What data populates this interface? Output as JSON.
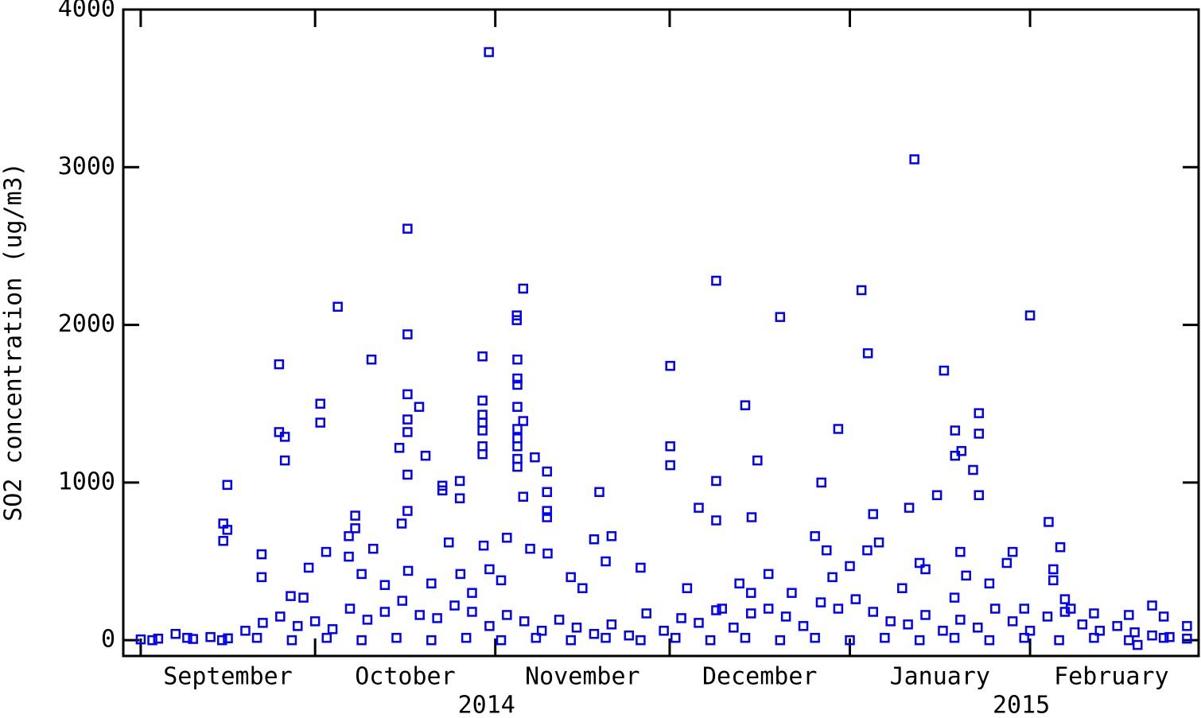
{
  "chart_data": {
    "type": "scatter",
    "ylabel": "SO2 concentration (ug/m3)",
    "color": "#0000ff",
    "marker": "square",
    "xlim": [
      -3,
      182
    ],
    "ylim": [
      -100,
      4000
    ],
    "yticks": [
      0,
      1000,
      2000,
      3000,
      4000
    ],
    "x_major_ticks": [
      0,
      30,
      61,
      91,
      122,
      153
    ],
    "x_labels": [
      {
        "value": 15,
        "label": "September"
      },
      {
        "value": 45.5,
        "label": "October"
      },
      {
        "value": 76,
        "label": "November"
      },
      {
        "value": 106.5,
        "label": "December"
      },
      {
        "value": 137.5,
        "label": "January"
      },
      {
        "value": 167,
        "label": "February"
      }
    ],
    "year_labels": [
      {
        "value": 59.5,
        "label": "2014"
      },
      {
        "value": 151.5,
        "label": "2015"
      }
    ],
    "x": [
      14.2,
      14.2,
      14.9,
      14.9,
      20.8,
      20.8,
      23.8,
      23.8,
      24.8,
      24.8,
      25.8,
      28.9,
      30.9,
      30.9,
      31.9,
      33.9,
      35.8,
      35.8,
      36.9,
      36.9,
      39.7,
      44.5,
      44.9,
      45.9,
      45.9,
      45.9,
      45.9,
      45.9,
      45.9,
      45.9,
      47.9,
      49,
      51.9,
      51.9,
      54.9,
      54.9,
      58.8,
      58.8,
      58.8,
      58.8,
      58.8,
      58.8,
      58.8,
      59.9,
      64.7,
      64.7,
      64.8,
      64.8,
      64.8,
      64.8,
      64.8,
      64.8,
      64.8,
      64.8,
      64.8,
      65.8,
      65.8,
      65.8,
      67.8,
      69.9,
      69.9,
      69.9,
      69.9,
      78.9,
      91.1,
      91.1,
      91.1,
      96,
      99,
      99,
      99,
      104,
      105.1,
      106.1,
      110,
      117.1,
      120,
      124,
      125.1,
      126,
      132.2,
      133.1,
      138.2,
      140.1,
      140.1,
      141.2,
      143.2,
      144.2,
      144.2,
      144.2,
      153,
      156.2,
      158.2,
      28,
      38,
      40,
      42,
      46,
      50,
      53,
      55,
      57,
      59,
      60,
      62,
      63,
      67,
      70,
      74,
      76,
      78,
      80,
      81,
      86,
      94,
      100,
      103,
      105,
      108,
      112,
      116,
      118,
      119,
      122,
      125,
      127,
      131,
      134,
      135,
      137,
      140,
      141,
      142,
      146,
      150,
      149,
      152,
      157,
      157,
      159,
      160,
      164,
      170,
      174,
      176,
      180,
      0,
      3,
      6,
      9,
      12,
      15,
      18,
      21,
      24,
      27,
      30,
      33,
      36,
      39,
      42,
      45,
      48,
      51,
      54,
      57,
      60,
      63,
      66,
      69,
      72,
      75,
      78,
      81,
      84,
      87,
      90,
      93,
      96,
      99,
      102,
      105,
      108,
      111,
      114,
      117,
      120,
      123,
      126,
      129,
      132,
      135,
      138,
      141,
      144,
      147,
      150,
      153,
      156,
      159,
      162,
      165,
      168,
      171,
      174,
      177,
      180,
      2,
      8,
      14,
      20,
      26,
      32,
      38,
      44,
      50,
      56,
      62,
      68,
      74,
      80,
      86,
      92,
      98,
      104,
      110,
      116,
      122,
      128,
      134,
      140,
      146,
      152,
      158,
      164,
      170,
      176,
      171.5
    ],
    "values": [
      740,
      630,
      985,
      700,
      545,
      400,
      1750,
      1320,
      1290,
      1140,
      280,
      460,
      1500,
      1380,
      560,
      2115,
      660,
      530,
      790,
      710,
      1780,
      1220,
      740,
      2610,
      1940,
      1560,
      1400,
      1320,
      1050,
      820,
      1480,
      1170,
      980,
      950,
      1010,
      900,
      1800,
      1520,
      1430,
      1380,
      1330,
      1230,
      1180,
      3730,
      2060,
      2030,
      1780,
      1660,
      1620,
      1480,
      1340,
      1280,
      1230,
      1150,
      1100,
      2230,
      1390,
      910,
      1160,
      1070,
      940,
      820,
      780,
      940,
      1740,
      1230,
      1110,
      840,
      2280,
      1010,
      760,
      1490,
      780,
      1140,
      2050,
      1000,
      1340,
      2220,
      1820,
      800,
      840,
      3050,
      1710,
      1330,
      1170,
      1200,
      1080,
      1440,
      1310,
      920,
      2060,
      750,
      590,
      270,
      420,
      580,
      350,
      440,
      360,
      620,
      420,
      300,
      600,
      450,
      380,
      650,
      580,
      550,
      400,
      330,
      640,
      500,
      660,
      460,
      330,
      200,
      360,
      300,
      420,
      300,
      660,
      570,
      400,
      470,
      570,
      620,
      330,
      490,
      450,
      920,
      270,
      560,
      410,
      360,
      560,
      490,
      200,
      450,
      380,
      260,
      200,
      170,
      160,
      220,
      150,
      90,
      5,
      10,
      40,
      8,
      20,
      12,
      60,
      110,
      150,
      90,
      120,
      70,
      200,
      130,
      180,
      250,
      160,
      140,
      220,
      180,
      90,
      160,
      120,
      60,
      130,
      80,
      40,
      100,
      30,
      170,
      60,
      140,
      110,
      190,
      80,
      170,
      200,
      150,
      90,
      240,
      200,
      260,
      180,
      120,
      100,
      160,
      60,
      130,
      80,
      200,
      120,
      60,
      150,
      180,
      100,
      60,
      90,
      50,
      30,
      20,
      10,
      0,
      15,
      0,
      15,
      0,
      15,
      0,
      15,
      0,
      15,
      0,
      15,
      0,
      15,
      0,
      15,
      0,
      15,
      0,
      15,
      0,
      15,
      0,
      15,
      0,
      15,
      0,
      15,
      0,
      15,
      -30
    ]
  }
}
